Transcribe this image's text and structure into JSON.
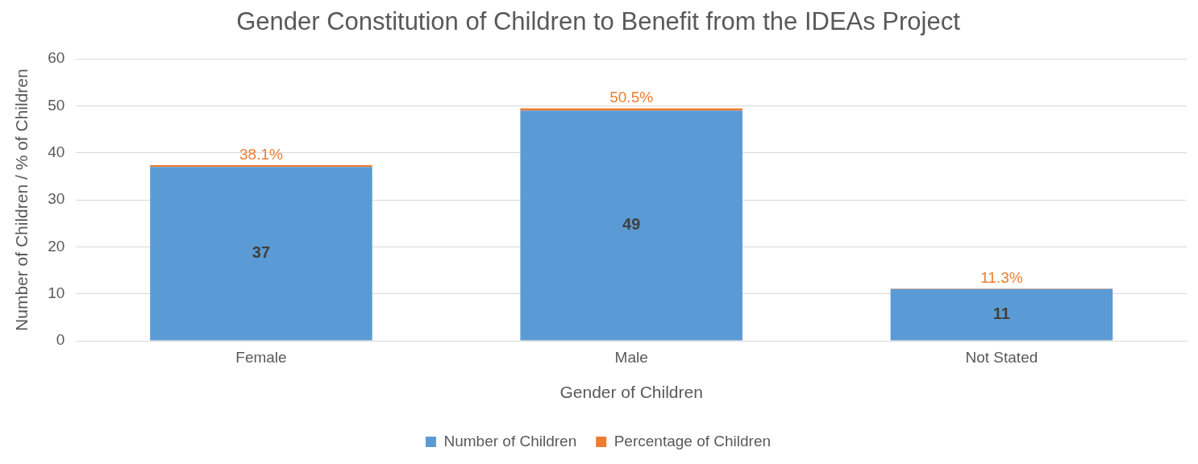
{
  "chart_data": {
    "type": "bar",
    "title": "Gender Constitution of Children to Benefit from the IDEAs Project",
    "xlabel": "Gender of Children",
    "ylabel": "Number of Children / % of Children",
    "categories": [
      "Female",
      "Male",
      "Not Stated"
    ],
    "series": [
      {
        "name": "Number of Children",
        "color": "#5b9bd5",
        "values": [
          37,
          49,
          11
        ],
        "value_labels": [
          "37",
          "49",
          "11"
        ]
      },
      {
        "name": "Percentage of Children",
        "color": "#ed7d31",
        "values": [
          0.381,
          0.505,
          0.113
        ],
        "value_labels": [
          "38.1%",
          "50.5%",
          "11.3%"
        ]
      }
    ],
    "stacked": true,
    "ylim": [
      0,
      60
    ],
    "yticks": [
      0,
      10,
      20,
      30,
      40,
      50,
      60
    ],
    "grid": "y",
    "legend": "bottom"
  }
}
